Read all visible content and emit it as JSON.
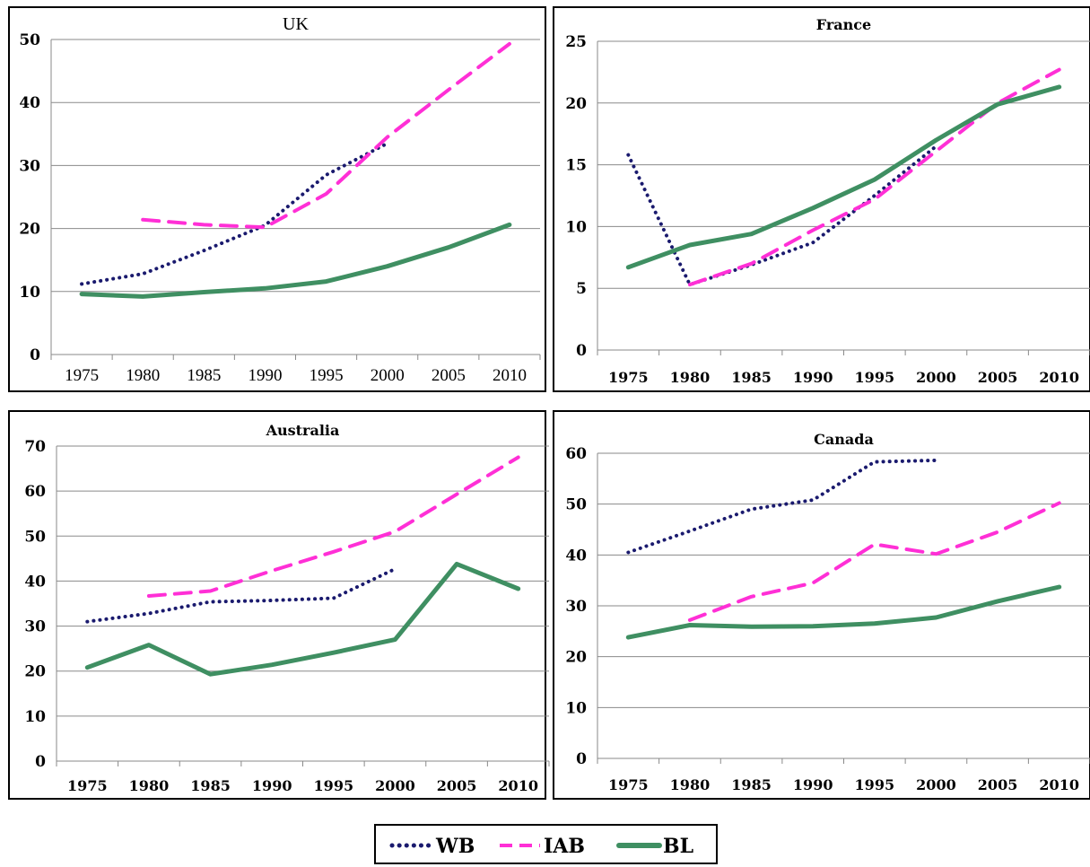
{
  "series_styles": {
    "WB": {
      "color": "#1a1a6e",
      "dash": "dotted"
    },
    "IAB": {
      "color": "#ff2fd6",
      "dash": "dashed"
    },
    "BL": {
      "color": "#3f8f62",
      "dash": "solid"
    }
  },
  "legend": [
    "WB",
    "IAB",
    "BL"
  ],
  "chart_data": [
    {
      "type": "line",
      "title": "UK",
      "x": [
        1975,
        1980,
        1985,
        1990,
        1995,
        2000,
        2005,
        2010
      ],
      "ylim": [
        0,
        50
      ],
      "yticks": [
        0,
        10,
        20,
        30,
        40,
        50
      ],
      "grid": true,
      "series": [
        {
          "name": "WB",
          "x": [
            1975,
            1980,
            1985,
            1990,
            1995,
            2000
          ],
          "values": [
            11.2,
            12.8,
            16.5,
            20.5,
            28.5,
            33.5
          ]
        },
        {
          "name": "IAB",
          "x": [
            1980,
            1985,
            1990,
            1995,
            2000,
            2005,
            2010
          ],
          "values": [
            21.4,
            20.6,
            20.2,
            25.5,
            34.5,
            42.0,
            49.3
          ]
        },
        {
          "name": "BL",
          "x": [
            1975,
            1980,
            1985,
            1990,
            1995,
            2000,
            2005,
            2010
          ],
          "values": [
            9.6,
            9.2,
            9.9,
            10.5,
            11.6,
            14.0,
            17.0,
            20.6
          ]
        }
      ]
    },
    {
      "type": "line",
      "title": "France",
      "x": [
        1975,
        1980,
        1985,
        1990,
        1995,
        2000,
        2005,
        2010
      ],
      "ylim": [
        0,
        25
      ],
      "yticks": [
        0,
        5,
        10,
        15,
        20,
        25
      ],
      "grid": true,
      "series": [
        {
          "name": "WB",
          "x": [
            1975,
            1980,
            1985,
            1990,
            1995,
            2000
          ],
          "values": [
            15.8,
            5.3,
            6.9,
            8.7,
            12.5,
            16.5
          ]
        },
        {
          "name": "IAB",
          "x": [
            1980,
            1985,
            1990,
            1995,
            2000,
            2005,
            2010
          ],
          "values": [
            5.3,
            7.0,
            9.7,
            12.2,
            16.1,
            20.0,
            22.7
          ]
        },
        {
          "name": "BL",
          "x": [
            1975,
            1980,
            1985,
            1990,
            1995,
            2000,
            2005,
            2010
          ],
          "values": [
            6.7,
            8.5,
            9.4,
            11.5,
            13.8,
            17.0,
            19.9,
            21.3
          ]
        }
      ]
    },
    {
      "type": "line",
      "title": "Australia",
      "x": [
        1975,
        1980,
        1985,
        1990,
        1995,
        2000,
        2005,
        2010
      ],
      "ylim": [
        0,
        70
      ],
      "yticks": [
        0,
        10,
        20,
        30,
        40,
        50,
        60,
        70
      ],
      "grid": true,
      "series": [
        {
          "name": "WB",
          "x": [
            1975,
            1980,
            1985,
            1990,
            1995,
            2000
          ],
          "values": [
            31.0,
            32.8,
            35.4,
            35.7,
            36.2,
            42.7
          ]
        },
        {
          "name": "IAB",
          "x": [
            1980,
            1985,
            1990,
            1995,
            2000,
            2005,
            2010
          ],
          "values": [
            36.7,
            37.8,
            42.3,
            46.5,
            51.0,
            59.3,
            67.5
          ]
        },
        {
          "name": "BL",
          "x": [
            1975,
            1980,
            1985,
            1990,
            1995,
            2000,
            2005,
            2010
          ],
          "values": [
            20.8,
            25.8,
            19.3,
            21.4,
            24.1,
            27.0,
            43.8,
            38.3
          ]
        }
      ]
    },
    {
      "type": "line",
      "title": "Canada",
      "x": [
        1975,
        1980,
        1985,
        1990,
        1995,
        2000,
        2005,
        2010
      ],
      "ylim": [
        0,
        60
      ],
      "yticks": [
        0,
        10,
        20,
        30,
        40,
        50,
        60
      ],
      "grid": true,
      "series": [
        {
          "name": "WB",
          "x": [
            1975,
            1980,
            1985,
            1990,
            1995,
            2000
          ],
          "values": [
            40.5,
            44.7,
            49.0,
            50.8,
            58.3,
            58.6
          ]
        },
        {
          "name": "IAB",
          "x": [
            1980,
            1985,
            1990,
            1995,
            2000,
            2005,
            2010
          ],
          "values": [
            27.2,
            31.8,
            34.5,
            42.1,
            40.2,
            44.5,
            50.2
          ]
        },
        {
          "name": "BL",
          "x": [
            1975,
            1980,
            1985,
            1990,
            1995,
            2000,
            2005,
            2010
          ],
          "values": [
            23.8,
            26.2,
            25.9,
            26.0,
            26.5,
            27.7,
            30.9,
            33.7
          ]
        }
      ]
    }
  ]
}
